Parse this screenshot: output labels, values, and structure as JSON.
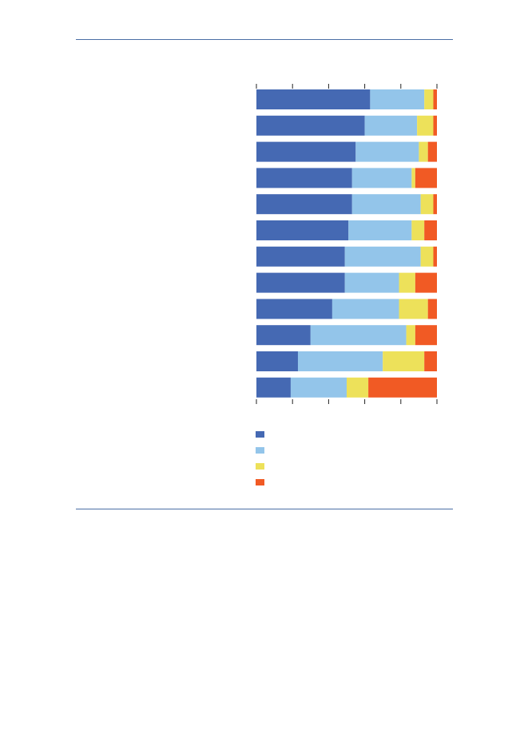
{
  "chart_data": {
    "type": "bar",
    "orientation": "horizontal",
    "stacked": true,
    "normalized": true,
    "xlim": [
      0,
      100
    ],
    "x_tick_count": 6,
    "categories": [
      "",
      "",
      "",
      "",
      "",
      "",
      "",
      "",
      "",
      "",
      "",
      ""
    ],
    "series": [
      {
        "color": "#4569b3",
        "values": [
          63,
          60,
          55,
          53,
          53,
          51,
          49,
          49,
          42,
          30,
          23,
          19
        ]
      },
      {
        "color": "#93c5ea",
        "values": [
          30,
          29,
          35,
          33,
          38,
          35,
          42,
          30,
          37,
          53,
          47,
          31
        ]
      },
      {
        "color": "#ede15a",
        "values": [
          5,
          9,
          5,
          2,
          7,
          7,
          7,
          9,
          16,
          5,
          23,
          12
        ]
      },
      {
        "color": "#f15a24",
        "values": [
          2,
          2,
          5,
          12,
          2,
          7,
          2,
          12,
          5,
          12,
          7,
          38
        ]
      }
    ],
    "legend": {
      "position": "bottom-left",
      "labels": [
        "",
        "",
        "",
        ""
      ]
    },
    "grid": false
  }
}
